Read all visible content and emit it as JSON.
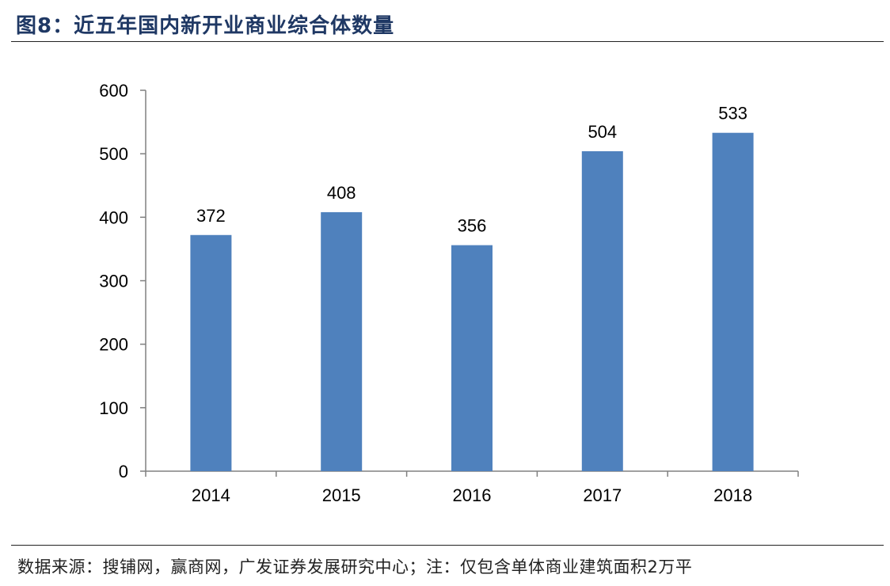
{
  "header": {
    "title": "图8：近五年国内新开业商业综合体数量"
  },
  "footer": {
    "source": "数据来源：搜铺网，赢商网，广发证券发展研究中心；注：仅包含单体商业建筑面积2万平"
  },
  "chart_data": {
    "type": "bar",
    "categories": [
      "2014",
      "2015",
      "2016",
      "2017",
      "2018"
    ],
    "values": [
      372,
      408,
      356,
      504,
      533
    ],
    "data_labels": [
      "372",
      "408",
      "356",
      "504",
      "533"
    ],
    "ylim": [
      0,
      600
    ],
    "yticks": [
      0,
      100,
      200,
      300,
      400,
      500,
      600
    ],
    "ytick_labels": [
      "0",
      "100",
      "200",
      "300",
      "400",
      "500",
      "600"
    ],
    "xlabel": "",
    "ylabel": "",
    "grid": false,
    "legend": "none",
    "bar_color": "#4f81bd",
    "axis_color": "#808080"
  }
}
